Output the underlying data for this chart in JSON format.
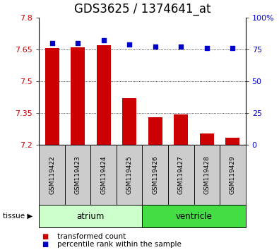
{
  "title": "GDS3625 / 1374641_at",
  "samples": [
    "GSM119422",
    "GSM119423",
    "GSM119424",
    "GSM119425",
    "GSM119426",
    "GSM119427",
    "GSM119428",
    "GSM119429"
  ],
  "transformed_count": [
    7.655,
    7.66,
    7.67,
    7.42,
    7.33,
    7.345,
    7.255,
    7.235
  ],
  "percentile_rank": [
    80,
    80,
    82,
    79,
    77,
    77,
    76,
    76
  ],
  "bar_baseline": 7.2,
  "ylim_left": [
    7.2,
    7.8
  ],
  "ylim_right": [
    0,
    100
  ],
  "yticks_left": [
    7.2,
    7.35,
    7.5,
    7.65,
    7.8
  ],
  "yticks_right": [
    0,
    25,
    50,
    75,
    100
  ],
  "ytick_labels_right": [
    "0",
    "25",
    "50",
    "75",
    "100%"
  ],
  "bar_color": "#cc0000",
  "dot_color": "#0000cc",
  "groups": [
    {
      "label": "atrium",
      "indices": [
        0,
        1,
        2,
        3
      ],
      "color": "#ccffcc"
    },
    {
      "label": "ventricle",
      "indices": [
        4,
        5,
        6,
        7
      ],
      "color": "#44dd44"
    }
  ],
  "grid_color": "#000000",
  "tick_label_color_left": "#cc0000",
  "tick_label_color_right": "#0000cc",
  "tissue_label": "tissue",
  "legend_items": [
    {
      "label": "transformed count",
      "color": "#cc0000"
    },
    {
      "label": "percentile rank within the sample",
      "color": "#0000cc"
    }
  ],
  "title_fontsize": 12,
  "tick_fontsize": 8,
  "label_fontsize": 6.5,
  "group_fontsize": 8.5,
  "legend_fontsize": 7.5
}
